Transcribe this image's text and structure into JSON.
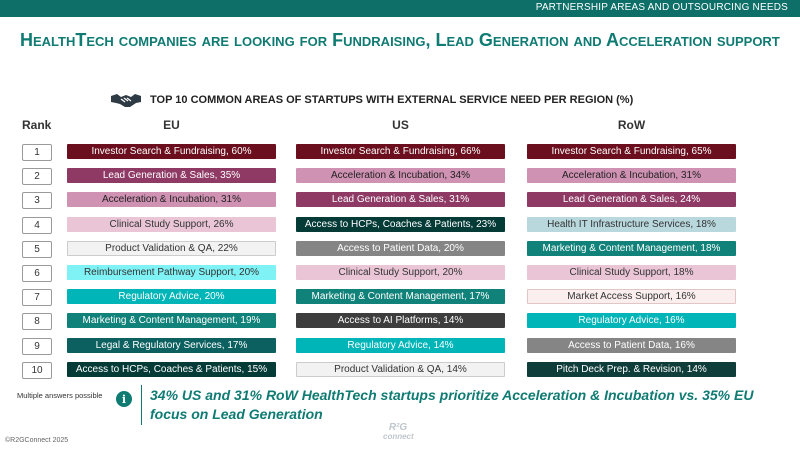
{
  "top_bar": {
    "label": "PARTNERSHIP AREAS AND OUTSOURCING NEEDS",
    "color": "#0e6f68"
  },
  "headline": "HealthTech companies are looking for Fundraising, Lead Generation and Acceleration support",
  "subtitle": {
    "icon": "handshake-icon",
    "text": "TOP 10 COMMON AREAS OF STARTUPS WITH EXTERNAL SERVICE NEED PER REGION (%)"
  },
  "headers": {
    "rank": "Rank",
    "eu": "EU",
    "us": "US",
    "row": "RoW"
  },
  "ranks": [
    "1",
    "2",
    "3",
    "4",
    "5",
    "6",
    "7",
    "8",
    "9",
    "10"
  ],
  "table": {
    "eu": [
      {
        "text": "Investor Search & Fundraising, 60%",
        "bg": "#6b0f1f",
        "fg": "#ffffff"
      },
      {
        "text": "Lead Generation & Sales, 35%",
        "bg": "#8e3a65",
        "fg": "#ffffff"
      },
      {
        "text": "Acceleration & Incubation, 31%",
        "bg": "#cf92b3",
        "fg": "#222222"
      },
      {
        "text": "Clinical Study Support, 26%",
        "bg": "#e9c5d6",
        "fg": "#333333"
      },
      {
        "text": "Product Validation & QA, 22%",
        "bg": "#f2f2f2",
        "fg": "#333333",
        "border": "#cccccc"
      },
      {
        "text": "Reimbursement Pathway Support, 20%",
        "bg": "#7ff2f5",
        "fg": "#333333"
      },
      {
        "text": "Regulatory Advice, 20%",
        "bg": "#00b5b8",
        "fg": "#ffffff"
      },
      {
        "text": "Marketing & Content Management, 19%",
        "bg": "#108279",
        "fg": "#ffffff"
      },
      {
        "text": "Legal & Regulatory Services, 17%",
        "bg": "#0d6060",
        "fg": "#ffffff"
      },
      {
        "text": "Access to HCPs, Coaches & Patients, 15%",
        "bg": "#043b37",
        "fg": "#ffffff"
      }
    ],
    "us": [
      {
        "text": "Investor Search & Fundraising, 66%",
        "bg": "#6b0f1f",
        "fg": "#ffffff"
      },
      {
        "text": "Acceleration & Incubation, 34%",
        "bg": "#cf92b3",
        "fg": "#222222"
      },
      {
        "text": "Lead Generation & Sales, 31%",
        "bg": "#8e3a65",
        "fg": "#ffffff"
      },
      {
        "text": "Access to HCPs, Coaches & Patients, 23%",
        "bg": "#043b37",
        "fg": "#ffffff"
      },
      {
        "text": "Access to Patient Data, 20%",
        "bg": "#858585",
        "fg": "#ffffff"
      },
      {
        "text": "Clinical Study Support, 20%",
        "bg": "#e9c5d6",
        "fg": "#333333"
      },
      {
        "text": "Marketing & Content Management, 17%",
        "bg": "#108279",
        "fg": "#ffffff"
      },
      {
        "text": "Access to AI Platforms, 14%",
        "bg": "#3d3d3d",
        "fg": "#ffffff"
      },
      {
        "text": "Regulatory Advice, 14%",
        "bg": "#00b5b8",
        "fg": "#ffffff"
      },
      {
        "text": "Product Validation & QA, 14%",
        "bg": "#f2f2f2",
        "fg": "#333333",
        "border": "#cccccc"
      }
    ],
    "row": [
      {
        "text": "Investor Search & Fundraising, 65%",
        "bg": "#6b0f1f",
        "fg": "#ffffff"
      },
      {
        "text": "Acceleration & Incubation, 31%",
        "bg": "#cf92b3",
        "fg": "#222222"
      },
      {
        "text": "Lead Generation & Sales, 24%",
        "bg": "#8e3a65",
        "fg": "#ffffff"
      },
      {
        "text": "Health IT Infrastructure Services, 18%",
        "bg": "#b8d8de",
        "fg": "#333333"
      },
      {
        "text": "Marketing & Content Management, 18%",
        "bg": "#108279",
        "fg": "#ffffff"
      },
      {
        "text": "Clinical Study Support, 18%",
        "bg": "#e9c5d6",
        "fg": "#333333"
      },
      {
        "text": "Market Access Support, 16%",
        "bg": "#fbeeee",
        "fg": "#333333",
        "border": "#e2c6c6"
      },
      {
        "text": "Regulatory Advice, 16%",
        "bg": "#00b5b8",
        "fg": "#ffffff"
      },
      {
        "text": "Access to Patient Data, 16%",
        "bg": "#858585",
        "fg": "#ffffff"
      },
      {
        "text": "Pitch Deck Prep. & Revision, 14%",
        "bg": "#0f3d3a",
        "fg": "#ffffff"
      }
    ]
  },
  "note": "Multiple answers possible",
  "info_icon": "info-icon",
  "insight": "34% US and 31% RoW HealthTech startups prioritize Acceleration & Incubation vs. 35% EU focus on Lead Generation",
  "copyright": "©R2GConnect 2025",
  "logo": {
    "line1": "R²G",
    "line2": "connect"
  }
}
